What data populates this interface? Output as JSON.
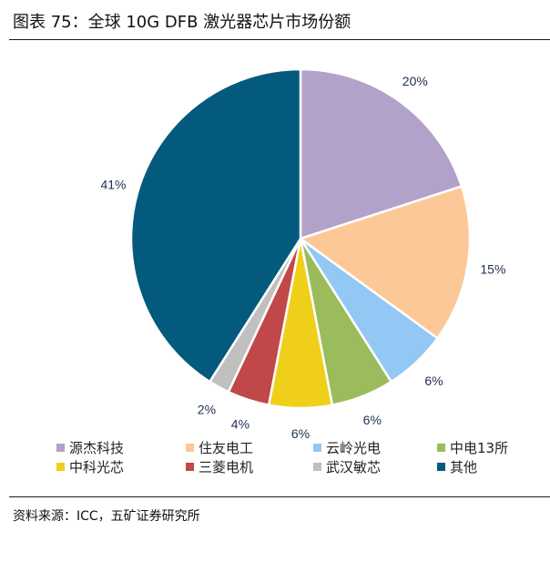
{
  "title": "图表 75：全球 10G DFB 激光器芯片市场份额",
  "source": "资料来源：ICC，五矿证券研究所",
  "chart_data": {
    "type": "pie",
    "title": "",
    "slices": [
      {
        "name": "源杰科技",
        "value": 20,
        "label": "20%",
        "color": "#b2a2c9"
      },
      {
        "name": "住友电工",
        "value": 15,
        "label": "15%",
        "color": "#fdc897"
      },
      {
        "name": "云岭光电",
        "value": 6,
        "label": "6%",
        "color": "#93c8f5"
      },
      {
        "name": "中电13所",
        "value": 6,
        "label": "6%",
        "color": "#9bbc5c"
      },
      {
        "name": "中科光芯",
        "value": 6,
        "label": "6%",
        "color": "#efcf1a"
      },
      {
        "name": "三菱电机",
        "value": 4,
        "label": "4%",
        "color": "#c04848"
      },
      {
        "name": "武汉敏芯",
        "value": 2,
        "label": "2%",
        "color": "#c0c0c0"
      },
      {
        "name": "其他",
        "value": 41,
        "label": "41%",
        "color": "#045a7d"
      }
    ],
    "legend_placement": "bottom"
  }
}
